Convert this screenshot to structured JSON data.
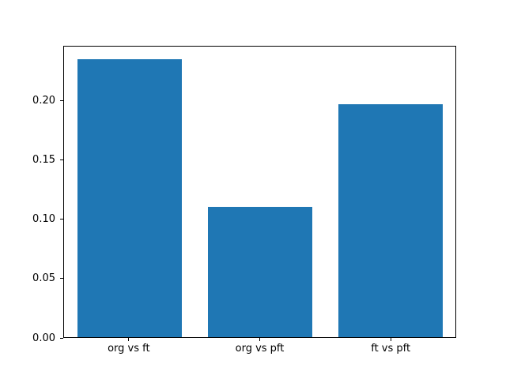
{
  "chart_data": {
    "type": "bar",
    "categories": [
      "org vs ft",
      "org vs pft",
      "ft vs pft"
    ],
    "values": [
      0.235,
      0.11,
      0.197
    ],
    "title": "",
    "xlabel": "",
    "ylabel": "",
    "ylim": [
      0,
      0.246
    ],
    "yticks": [
      0.0,
      0.05,
      0.1,
      0.15,
      0.2
    ],
    "ytick_labels": [
      "0.00",
      "0.05",
      "0.10",
      "0.15",
      "0.20"
    ],
    "bar_color": "#1f77b4",
    "bar_width_fraction": 0.8,
    "grid": false,
    "legend": null,
    "background_color": "#ffffff",
    "axis_color": "#000000"
  }
}
